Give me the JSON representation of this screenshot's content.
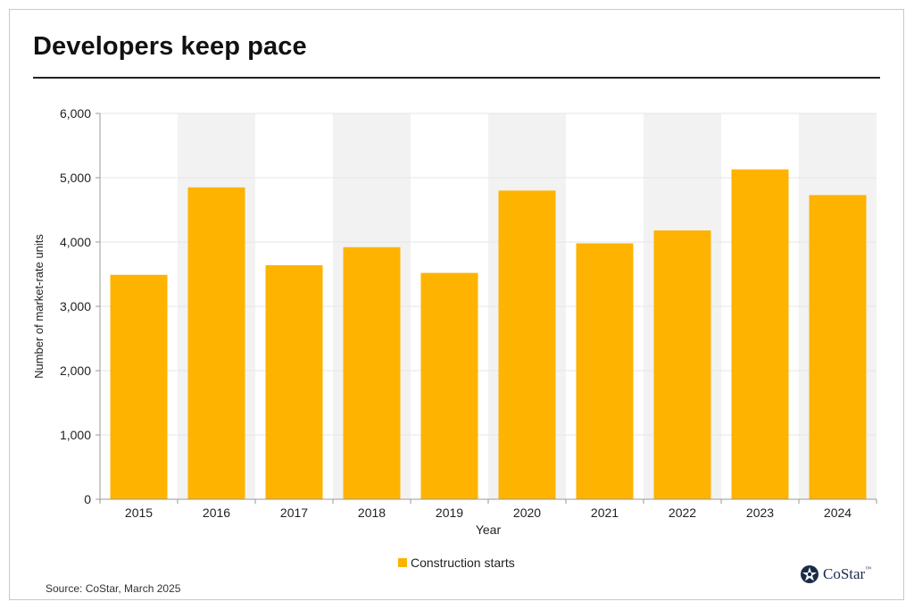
{
  "title": "Developers keep pace",
  "source": "Source: CoStar, March 2025",
  "brand": "CoStar",
  "brand_mark": "™",
  "colors": {
    "bar": "#FDB300",
    "band": "#F2F2F2",
    "grid": "#E6E6E6",
    "axis": "#999999"
  },
  "chart_data": {
    "type": "bar",
    "title": "Developers keep pace",
    "xlabel": "Year",
    "ylabel": "Number of market-rate units",
    "categories": [
      "2015",
      "2016",
      "2017",
      "2018",
      "2019",
      "2020",
      "2021",
      "2022",
      "2023",
      "2024"
    ],
    "series": [
      {
        "name": "Construction starts",
        "values": [
          3490,
          4850,
          3640,
          3920,
          3520,
          4800,
          3980,
          4180,
          5130,
          4730
        ]
      }
    ],
    "ylim": [
      0,
      6000
    ],
    "yticks": [
      0,
      1000,
      2000,
      3000,
      4000,
      5000,
      6000
    ],
    "ytick_labels": [
      "0",
      "1,000",
      "2,000",
      "3,000",
      "4,000",
      "5,000",
      "6,000"
    ],
    "grid": true,
    "alternating_bands": true,
    "legend": "bottom-center"
  }
}
